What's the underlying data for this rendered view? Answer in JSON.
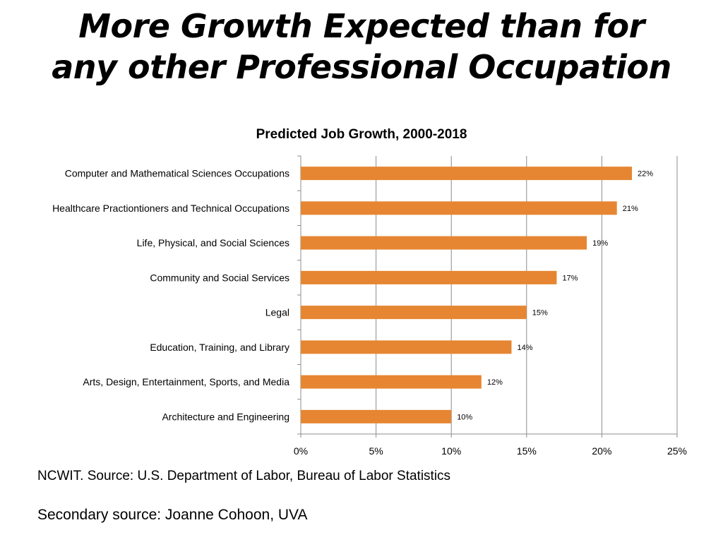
{
  "slide": {
    "title_line1": "More Growth Expected than for",
    "title_line2": "any other Professional Occupation",
    "source": "NCWIT. Source: U.S. Department of Labor, Bureau of Labor Statistics",
    "secondary_source": "Secondary source: Joanne Cohoon, UVA"
  },
  "chart_data": {
    "type": "bar",
    "orientation": "horizontal",
    "title": "Predicted Job Growth, 2000-2018",
    "categories": [
      "Computer and Mathematical Sciences Occupations",
      "Healthcare Practiontioners and Technical Occupations",
      "Life, Physical, and Social Sciences",
      "Community and Social Services",
      "Legal",
      "Education, Training, and Library",
      "Arts, Design, Entertainment, Sports, and Media",
      "Architecture and Engineering"
    ],
    "values": [
      22,
      21,
      19,
      17,
      15,
      14,
      12,
      10
    ],
    "data_labels": [
      "22%",
      "21%",
      "19%",
      "17%",
      "15%",
      "14%",
      "12%",
      "10%"
    ],
    "xlim": [
      0,
      25
    ],
    "x_ticks": [
      0,
      5,
      10,
      15,
      20,
      25
    ],
    "x_tick_labels": [
      "0%",
      "5%",
      "10%",
      "15%",
      "20%",
      "25%"
    ],
    "xlabel": "",
    "ylabel": "",
    "grid": "vertical gridlines",
    "legend": "none",
    "bar_color": "#E68632",
    "grid_color": "#8C8C8C"
  }
}
